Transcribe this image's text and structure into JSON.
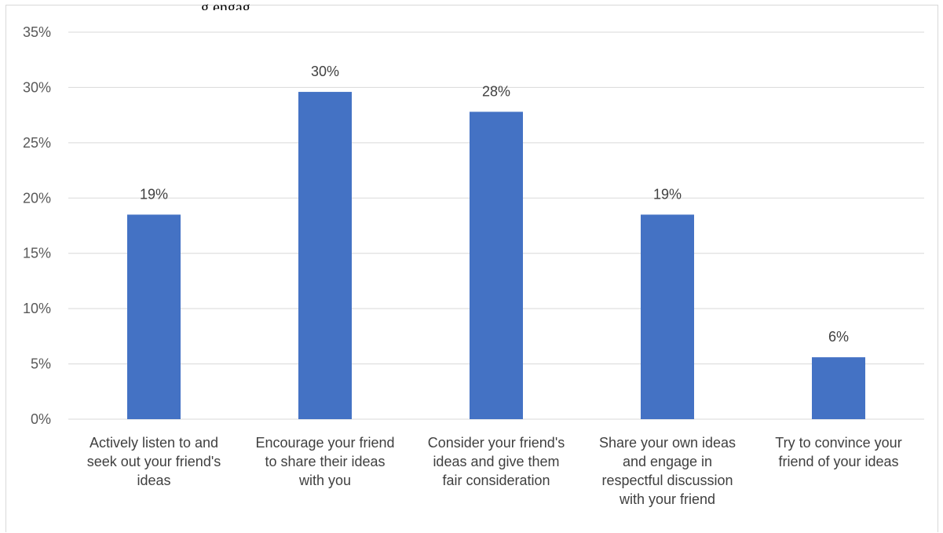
{
  "title_fragment": "g engag",
  "chart_data": {
    "type": "bar",
    "title": "",
    "xlabel": "",
    "ylabel": "",
    "ylim": [
      0,
      35
    ],
    "ytick_step": 5,
    "ytick_labels": [
      "0%",
      "5%",
      "10%",
      "15%",
      "20%",
      "25%",
      "30%",
      "35%"
    ],
    "grid": true,
    "legend": "none",
    "categories": [
      [
        "Actively listen to and",
        "seek out your friend's",
        "ideas"
      ],
      [
        "Encourage your friend",
        "to share their ideas",
        "with you"
      ],
      [
        "Consider your friend's",
        "ideas and give them",
        "fair consideration"
      ],
      [
        "Share your own ideas",
        "and engage in",
        "respectful discussion",
        "with your friend"
      ],
      [
        "Try to convince your",
        "friend of your ideas"
      ]
    ],
    "values": [
      18.5,
      29.6,
      27.8,
      18.5,
      5.6
    ],
    "data_labels": [
      "19%",
      "30%",
      "28%",
      "19%",
      "6%"
    ],
    "colors": {
      "bar": "#4472c4",
      "grid": "#d9d9d9"
    }
  }
}
